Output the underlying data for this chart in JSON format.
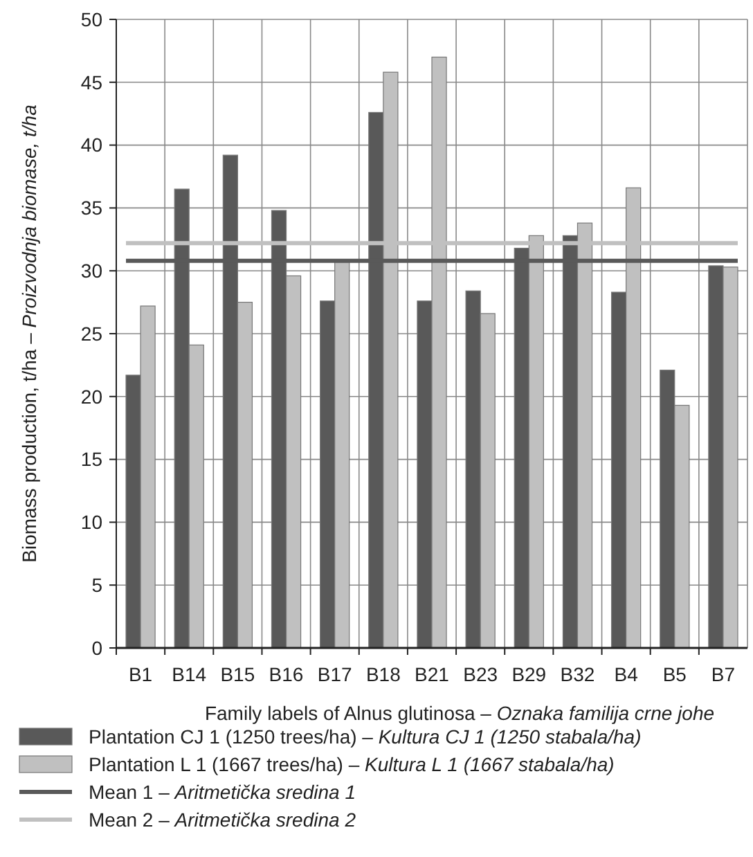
{
  "chart_data": {
    "type": "bar",
    "xlabel": "Family labels of Alnus glutinosa – Oznaka familija crne johe",
    "ylabel": "Biomass production, t/ha – Proizvodnja biomase, t/ha",
    "categories": [
      "B1",
      "B14",
      "B15",
      "B16",
      "B17",
      "B18",
      "B21",
      "B23",
      "B29",
      "B32",
      "B4",
      "B5",
      "B7"
    ],
    "series": [
      {
        "name": "Plantation CJ 1 (1250 trees/ha) – Kultura CJ 1 (1250 stabala/ha)",
        "color": "#595959",
        "values": [
          21.7,
          36.5,
          39.2,
          34.8,
          27.6,
          42.6,
          27.6,
          28.4,
          31.8,
          32.8,
          28.3,
          22.1,
          30.4
        ]
      },
      {
        "name": "Plantation L 1 (1667 trees/ha) – Kultura L 1 (1667 stabala/ha)",
        "color": "#c0c0c0",
        "values": [
          27.2,
          24.1,
          27.5,
          29.6,
          30.7,
          45.8,
          47.0,
          26.6,
          32.8,
          33.8,
          36.6,
          19.3,
          30.3
        ]
      }
    ],
    "ref_lines": [
      {
        "axis": "y",
        "value": 30.8,
        "label": "Mean 1 – Aritmetička sredina 1",
        "color": "#595959",
        "line_style": "solid"
      },
      {
        "axis": "y",
        "value": 32.2,
        "label": "Mean 2 – Aritmetička sredina 2",
        "color": "#c0c0c0",
        "line_style": "solid"
      }
    ],
    "ylim": [
      0,
      50
    ],
    "yticks": [
      0,
      5,
      10,
      15,
      20,
      25,
      30,
      35,
      40,
      45,
      50
    ],
    "grid": true,
    "legend": "bottom"
  }
}
